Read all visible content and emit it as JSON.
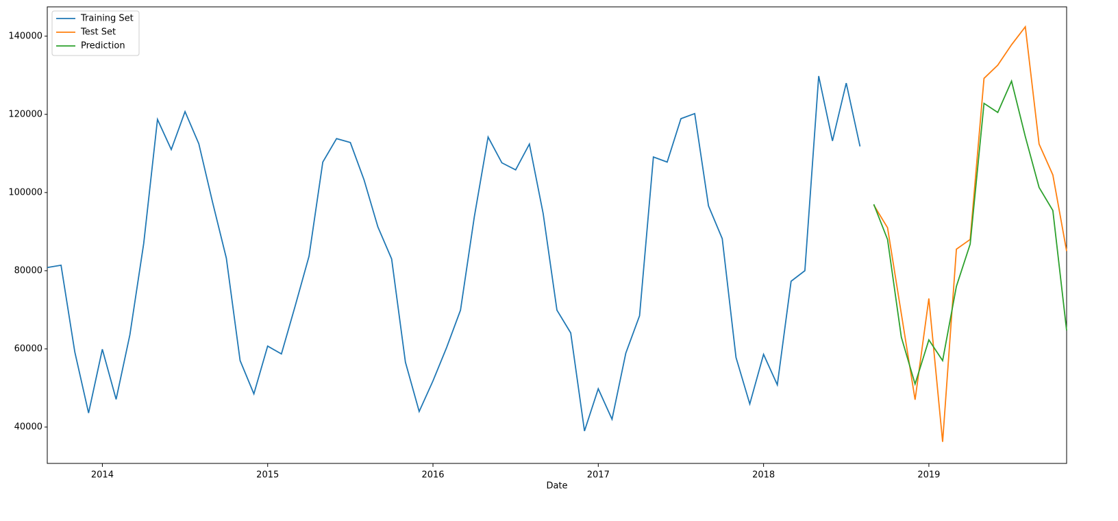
{
  "chart_data": {
    "type": "line",
    "xlabel": "Date",
    "x": [
      "2013-09",
      "2013-10",
      "2013-11",
      "2013-12",
      "2014-01",
      "2014-02",
      "2014-03",
      "2014-04",
      "2014-05",
      "2014-06",
      "2014-07",
      "2014-08",
      "2014-09",
      "2014-10",
      "2014-11",
      "2014-12",
      "2015-01",
      "2015-02",
      "2015-03",
      "2015-04",
      "2015-05",
      "2015-06",
      "2015-07",
      "2015-08",
      "2015-09",
      "2015-10",
      "2015-11",
      "2015-12",
      "2016-01",
      "2016-02",
      "2016-03",
      "2016-04",
      "2016-05",
      "2016-06",
      "2016-07",
      "2016-08",
      "2016-09",
      "2016-10",
      "2016-11",
      "2016-12",
      "2017-01",
      "2017-02",
      "2017-03",
      "2017-04",
      "2017-05",
      "2017-06",
      "2017-07",
      "2017-08",
      "2017-09",
      "2017-10",
      "2017-11",
      "2017-12",
      "2018-01",
      "2018-02",
      "2018-03",
      "2018-04",
      "2018-05",
      "2018-06",
      "2018-07",
      "2018-08",
      "2018-09",
      "2018-10",
      "2018-11",
      "2018-12",
      "2019-01",
      "2019-02",
      "2019-03",
      "2019-04",
      "2019-05",
      "2019-06",
      "2019-07",
      "2019-08",
      "2019-09",
      "2019-10",
      "2019-11"
    ],
    "series": [
      {
        "name": "Training Set",
        "color": "#1f77b4",
        "values": [
          80800,
          81400,
          59200,
          43600,
          59900,
          47100,
          63600,
          87000,
          118700,
          111000,
          120700,
          112500,
          97500,
          83200,
          57000,
          48500,
          60700,
          58700,
          71000,
          83700,
          107800,
          113800,
          112800,
          103200,
          91200,
          83000,
          56600,
          44000,
          51800,
          60400,
          69900,
          93800,
          114200,
          107600,
          105800,
          112400,
          94600,
          69900,
          64100,
          39000,
          49800,
          42000,
          58900,
          68500,
          109100,
          107800,
          118900,
          120200,
          96600,
          88200,
          57800,
          45900,
          58600,
          50800,
          77300,
          80000,
          129800,
          113200,
          128000,
          111800,
          null,
          null,
          null,
          null,
          null,
          null,
          null,
          null,
          null,
          null,
          null,
          null,
          null,
          null,
          null
        ]
      },
      {
        "name": "Test Set",
        "color": "#ff7f0e",
        "values": [
          null,
          null,
          null,
          null,
          null,
          null,
          null,
          null,
          null,
          null,
          null,
          null,
          null,
          null,
          null,
          null,
          null,
          null,
          null,
          null,
          null,
          null,
          null,
          null,
          null,
          null,
          null,
          null,
          null,
          null,
          null,
          null,
          null,
          null,
          null,
          null,
          null,
          null,
          null,
          null,
          null,
          null,
          null,
          null,
          null,
          null,
          null,
          null,
          null,
          null,
          null,
          null,
          null,
          null,
          null,
          null,
          null,
          null,
          null,
          null,
          96800,
          91000,
          69000,
          47000,
          72900,
          36200,
          85500,
          88000,
          129200,
          132600,
          137800,
          142400,
          112400,
          104500,
          85000
        ]
      },
      {
        "name": "Prediction",
        "color": "#2ca02c",
        "values": [
          null,
          null,
          null,
          null,
          null,
          null,
          null,
          null,
          null,
          null,
          null,
          null,
          null,
          null,
          null,
          null,
          null,
          null,
          null,
          null,
          null,
          null,
          null,
          null,
          null,
          null,
          null,
          null,
          null,
          null,
          null,
          null,
          null,
          null,
          null,
          null,
          null,
          null,
          null,
          null,
          null,
          null,
          null,
          null,
          null,
          null,
          null,
          null,
          null,
          null,
          null,
          null,
          null,
          null,
          null,
          null,
          null,
          null,
          null,
          null,
          97000,
          88000,
          63000,
          51000,
          62300,
          57000,
          76000,
          86800,
          122800,
          120500,
          128500,
          114300,
          101300,
          95400,
          64700
        ]
      }
    ],
    "xlim": [
      "2013-09",
      "2019-11"
    ],
    "xticks": [
      {
        "value": "2014-01",
        "label": "2014"
      },
      {
        "value": "2015-01",
        "label": "2015"
      },
      {
        "value": "2016-01",
        "label": "2016"
      },
      {
        "value": "2017-01",
        "label": "2017"
      },
      {
        "value": "2018-01",
        "label": "2018"
      },
      {
        "value": "2019-01",
        "label": "2019"
      }
    ],
    "ylim": [
      30700,
      147500
    ],
    "yticks": [
      40000,
      60000,
      80000,
      100000,
      120000,
      140000
    ],
    "grid": false,
    "legend": "upper left"
  }
}
